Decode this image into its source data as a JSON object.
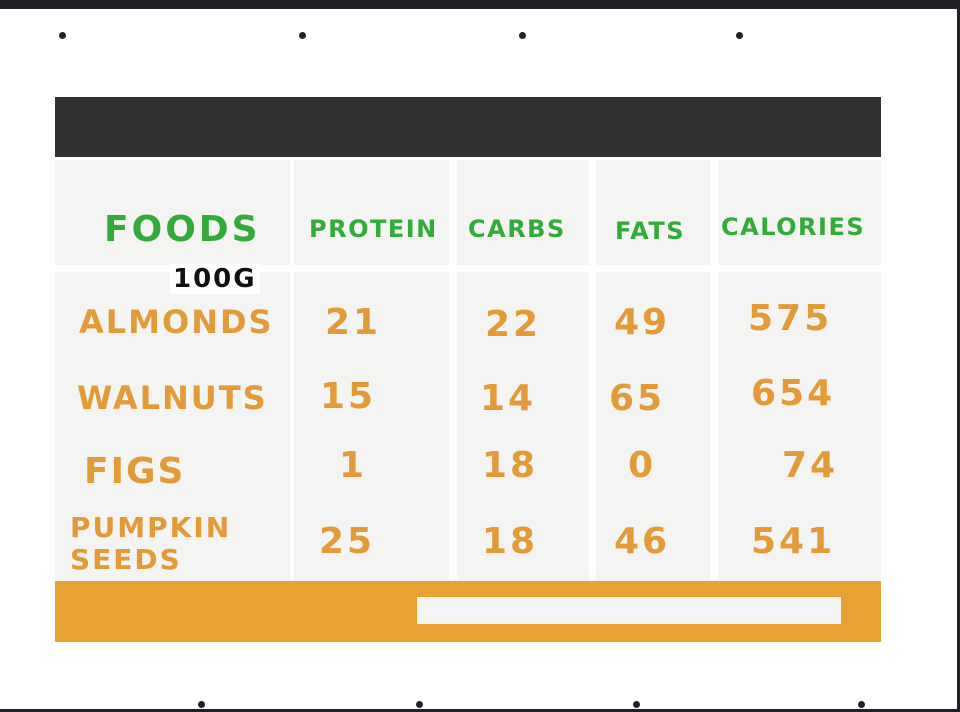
{
  "table": {
    "headers": {
      "foods": "FOODS",
      "protein": "PROTEIN",
      "carbs": "CARBS",
      "fats": "FATS",
      "calories": "CALORIES"
    },
    "unit": "100G",
    "rows": [
      {
        "food": "ALMONDS",
        "protein": "21",
        "carbs": "22",
        "fats": "49",
        "calories": "575"
      },
      {
        "food": "WALNUTS",
        "protein": "15",
        "carbs": "14",
        "fats": "65",
        "calories": "654"
      },
      {
        "food": "FIGS",
        "protein": "1",
        "carbs": "18",
        "fats": "0",
        "calories": "74"
      },
      {
        "food_line1": "PUMPKIN",
        "food_line2": "SEEDS",
        "protein": "25",
        "carbs": "18",
        "fats": "46",
        "calories": "541"
      }
    ]
  },
  "colors": {
    "header_bar": "#333132",
    "footer_bar": "#e8a133",
    "heading_text": "#33ab3a",
    "value_text": "#e29b38",
    "cell_background": "#f4f4f2"
  }
}
